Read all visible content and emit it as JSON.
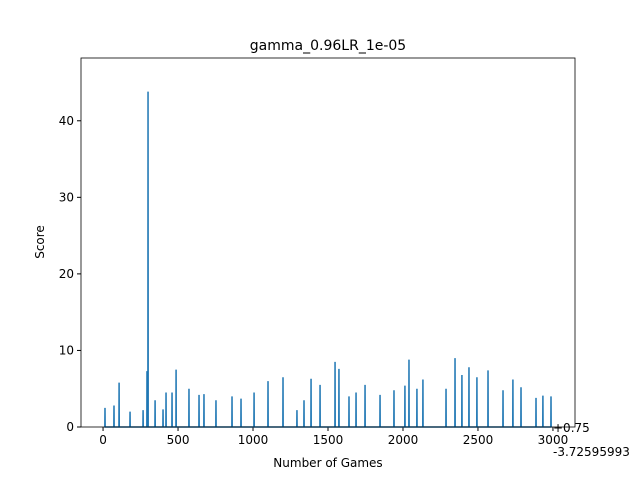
{
  "chart_data": {
    "type": "line",
    "title": "gamma_0.96LR_1e-05",
    "x_label": "Number of Games",
    "y_label": "Score",
    "offset_texts": [
      "+0.75",
      "-3.72595993"
    ],
    "x": [
      12,
      13,
      14,
      72,
      73,
      74,
      106,
      107,
      108,
      179,
      180,
      181,
      266,
      267,
      268,
      292,
      293,
      294,
      299,
      300,
      301,
      346,
      347,
      348,
      399,
      400,
      401,
      419,
      420,
      421,
      459,
      460,
      461,
      486,
      487,
      488,
      572,
      573,
      574,
      639,
      640,
      641,
      672,
      673,
      674,
      752,
      753,
      754,
      859,
      860,
      861,
      919,
      920,
      921,
      1006,
      1007,
      1008,
      1099,
      1100,
      1101,
      1199,
      1200,
      1201,
      1292,
      1293,
      1294,
      1339,
      1340,
      1341,
      1386,
      1387,
      1388,
      1446,
      1447,
      1448,
      1546,
      1547,
      1548,
      1572,
      1573,
      1574,
      1639,
      1640,
      1641,
      1686,
      1687,
      1688,
      1746,
      1747,
      1748,
      1846,
      1847,
      1848,
      1939,
      1940,
      1941,
      2012,
      2013,
      2014,
      2039,
      2040,
      2041,
      2092,
      2093,
      2094,
      2132,
      2133,
      2134,
      2286,
      2287,
      2288,
      2346,
      2347,
      2348,
      2392,
      2393,
      2394,
      2439,
      2440,
      2441,
      2492,
      2493,
      2494,
      2566,
      2567,
      2568,
      2666,
      2667,
      2668,
      2732,
      2733,
      2734,
      2786,
      2787,
      2788,
      2886,
      2887,
      2888,
      2932,
      2933,
      2934,
      2986,
      2987,
      2988
    ],
    "series": [
      {
        "color": "#1f77b4",
        "values": [
          0,
          2.5,
          0,
          0,
          2.8,
          0,
          0,
          5.8,
          0,
          0,
          2,
          0,
          0,
          2.2,
          0,
          0,
          7.3,
          0,
          0,
          43.8,
          0,
          0,
          3.5,
          0,
          0,
          2.3,
          0,
          0,
          4.5,
          0,
          0,
          4.5,
          0,
          0,
          7.5,
          0,
          0,
          5,
          0,
          0,
          4.2,
          0,
          0,
          4.3,
          0,
          0,
          3.5,
          0,
          0,
          4,
          0,
          0,
          3.7,
          0,
          0,
          4.5,
          0,
          0,
          6,
          0,
          0,
          6.5,
          0,
          0,
          2.2,
          0,
          0,
          3.5,
          0,
          0,
          6.3,
          0,
          0,
          5.5,
          0,
          0,
          8.5,
          0,
          0,
          7.6,
          0,
          0,
          4,
          0,
          0,
          4.5,
          0,
          0,
          5.5,
          0,
          0,
          4.2,
          0,
          0,
          4.8,
          0,
          0,
          5.4,
          0,
          0,
          8.8,
          0,
          0,
          5,
          0,
          0,
          6.2,
          0,
          0,
          5,
          0,
          0,
          9,
          0,
          0,
          6.8,
          0,
          0,
          7.8,
          0,
          0,
          6.5,
          0,
          0,
          7.4,
          0,
          0,
          4.8,
          0,
          0,
          6.2,
          0,
          0,
          5.2,
          0,
          0,
          3.8,
          0,
          0,
          4.1,
          0,
          0,
          4,
          0
        ]
      }
    ],
    "xlim": [
      -147,
      3147
    ],
    "ylim": [
      0,
      48.2
    ],
    "xticks": [
      0,
      500,
      1000,
      1500,
      2000,
      2500,
      3000
    ],
    "yticks": [
      0,
      10,
      20,
      30,
      40
    ]
  }
}
